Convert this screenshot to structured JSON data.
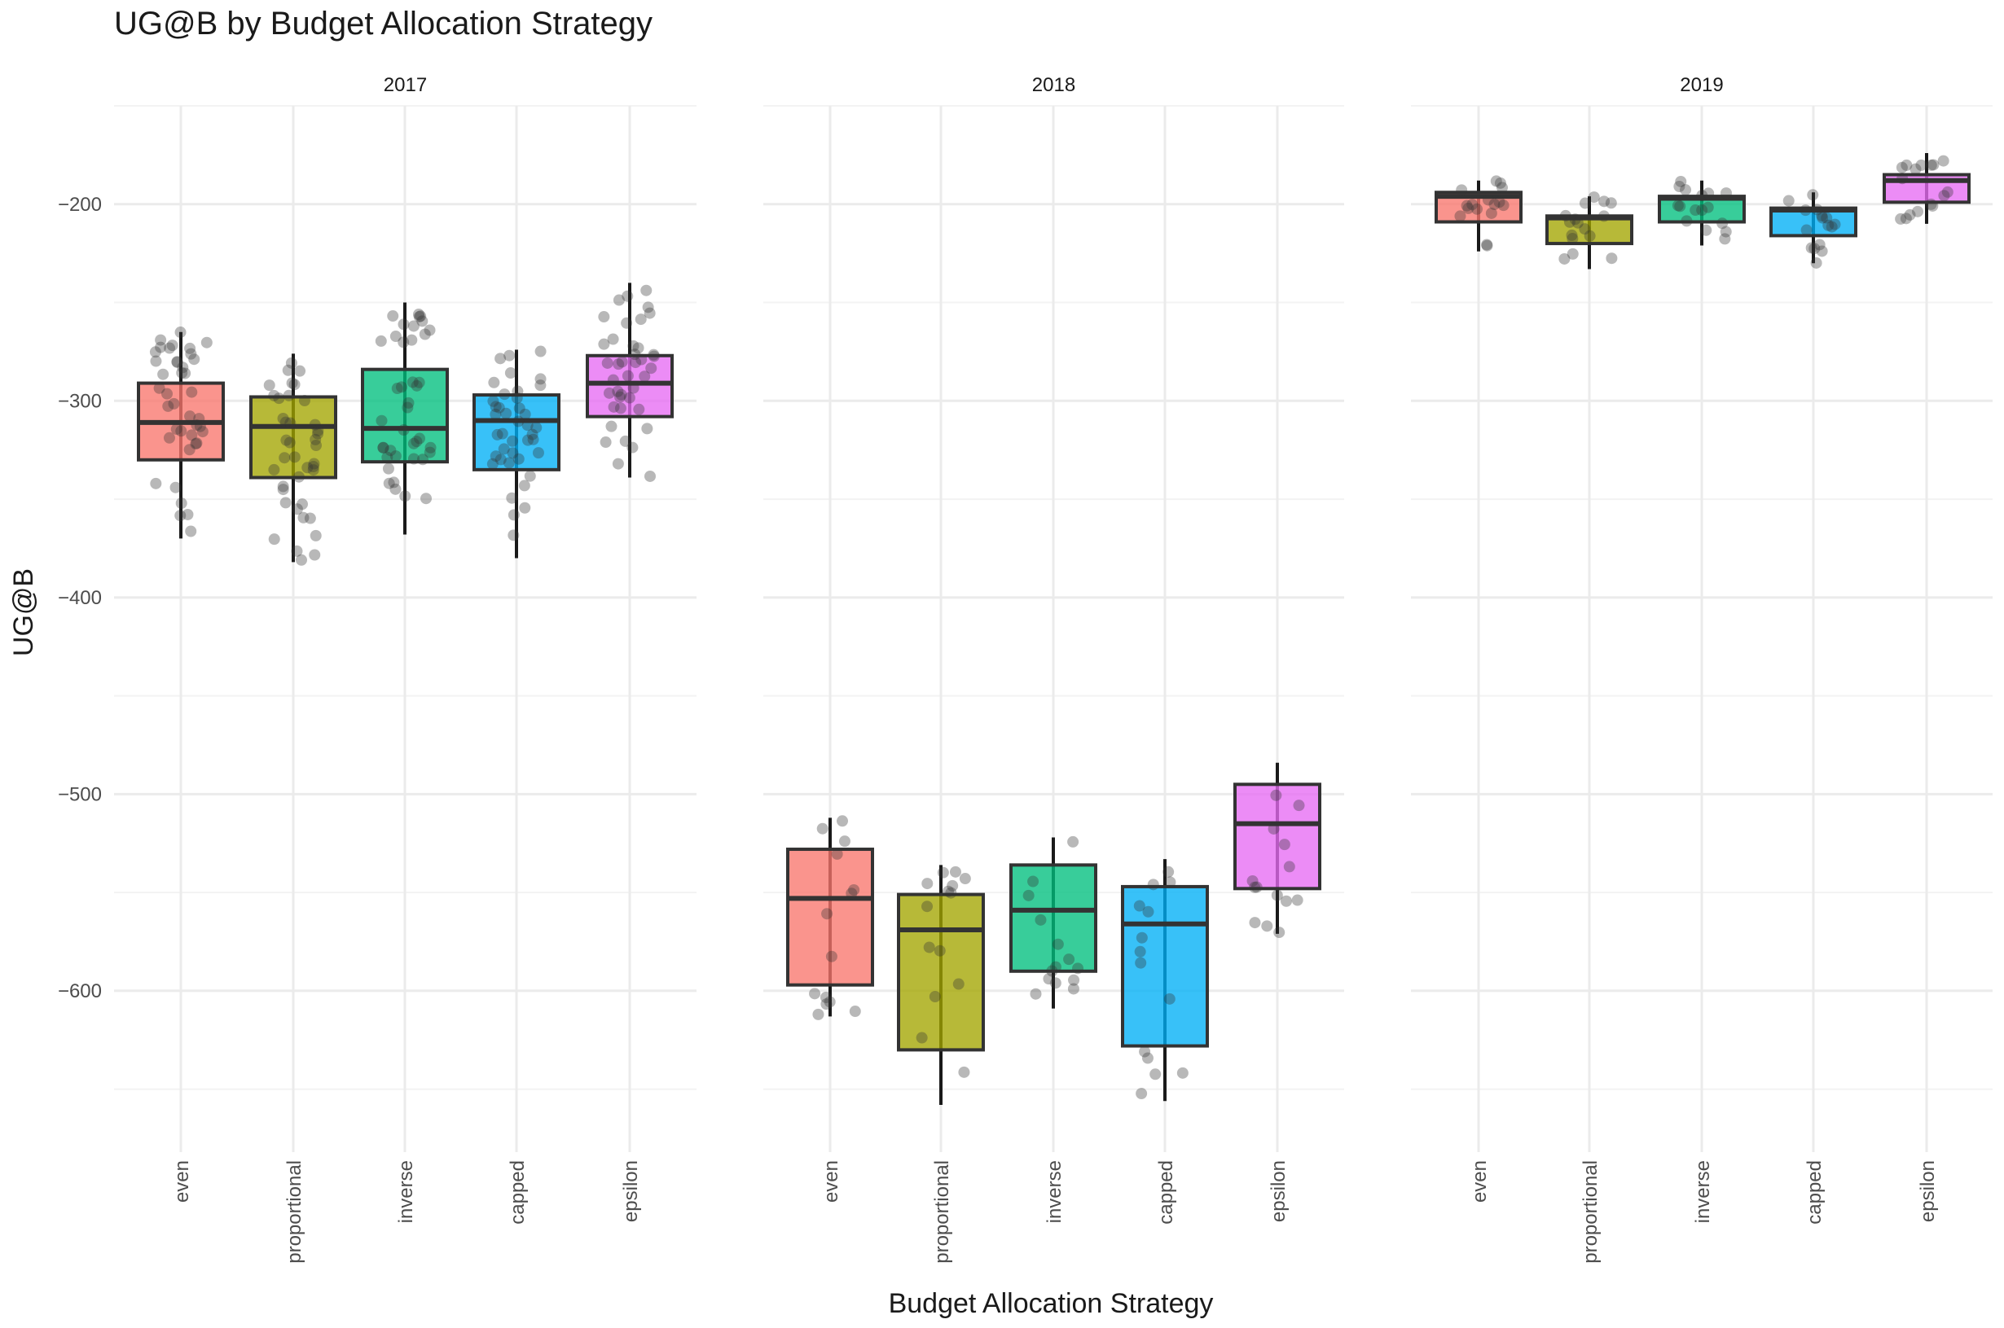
{
  "chart_data": {
    "type": "box",
    "title": "UG@B by Budget Allocation Strategy",
    "xlabel": "Budget Allocation Strategy",
    "ylabel": "UG@B",
    "ylim": [
      -682,
      -150
    ],
    "yticks": [
      -200,
      -300,
      -400,
      -500,
      -600
    ],
    "ytick_labels": [
      "−200",
      "−300",
      "−400",
      "−500",
      "−600"
    ],
    "grid": true,
    "legend": "none",
    "categories": [
      "even",
      "proportional",
      "inverse",
      "capped",
      "epsilon"
    ],
    "colors": {
      "even": "#f8766d",
      "proportional": "#a3a500",
      "inverse": "#00bf7d",
      "capped": "#00b0f6",
      "epsilon": "#e76bf3"
    },
    "facets": [
      {
        "label": "2017",
        "boxes": [
          {
            "category": "even",
            "q1": -330,
            "median": -311,
            "q3": -291,
            "whisker_low": -370,
            "whisker_high": -265
          },
          {
            "category": "proportional",
            "q1": -339,
            "median": -313,
            "q3": -298,
            "whisker_low": -382,
            "whisker_high": -276
          },
          {
            "category": "inverse",
            "q1": -331,
            "median": -314,
            "q3": -284,
            "whisker_low": -368,
            "whisker_high": -250
          },
          {
            "category": "capped",
            "q1": -335,
            "median": -310,
            "q3": -297,
            "whisker_low": -380,
            "whisker_high": -274
          },
          {
            "category": "epsilon",
            "q1": -308,
            "median": -291,
            "q3": -277,
            "whisker_low": -339,
            "whisker_high": -240
          }
        ]
      },
      {
        "label": "2018",
        "boxes": [
          {
            "category": "even",
            "q1": -597,
            "median": -553,
            "q3": -528,
            "whisker_low": -613,
            "whisker_high": -512
          },
          {
            "category": "proportional",
            "q1": -630,
            "median": -569,
            "q3": -551,
            "whisker_low": -658,
            "whisker_high": -536
          },
          {
            "category": "inverse",
            "q1": -590,
            "median": -559,
            "q3": -536,
            "whisker_low": -609,
            "whisker_high": -522
          },
          {
            "category": "capped",
            "q1": -628,
            "median": -566,
            "q3": -547,
            "whisker_low": -656,
            "whisker_high": -533
          },
          {
            "category": "epsilon",
            "q1": -548,
            "median": -515,
            "q3": -495,
            "whisker_low": -571,
            "whisker_high": -484
          }
        ]
      },
      {
        "label": "2019",
        "boxes": [
          {
            "category": "even",
            "q1": -209,
            "median": -196,
            "q3": -194,
            "whisker_low": -224,
            "whisker_high": -188
          },
          {
            "category": "proportional",
            "q1": -220,
            "median": -207,
            "q3": -206,
            "whisker_low": -233,
            "whisker_high": -196
          },
          {
            "category": "inverse",
            "q1": -209,
            "median": -197,
            "q3": -196,
            "whisker_low": -221,
            "whisker_high": -188
          },
          {
            "category": "capped",
            "q1": -216,
            "median": -203,
            "q3": -202,
            "whisker_low": -230,
            "whisker_high": -194
          },
          {
            "category": "epsilon",
            "q1": -199,
            "median": -188,
            "q3": -185,
            "whisker_low": -210,
            "whisker_high": -174
          }
        ]
      }
    ]
  }
}
